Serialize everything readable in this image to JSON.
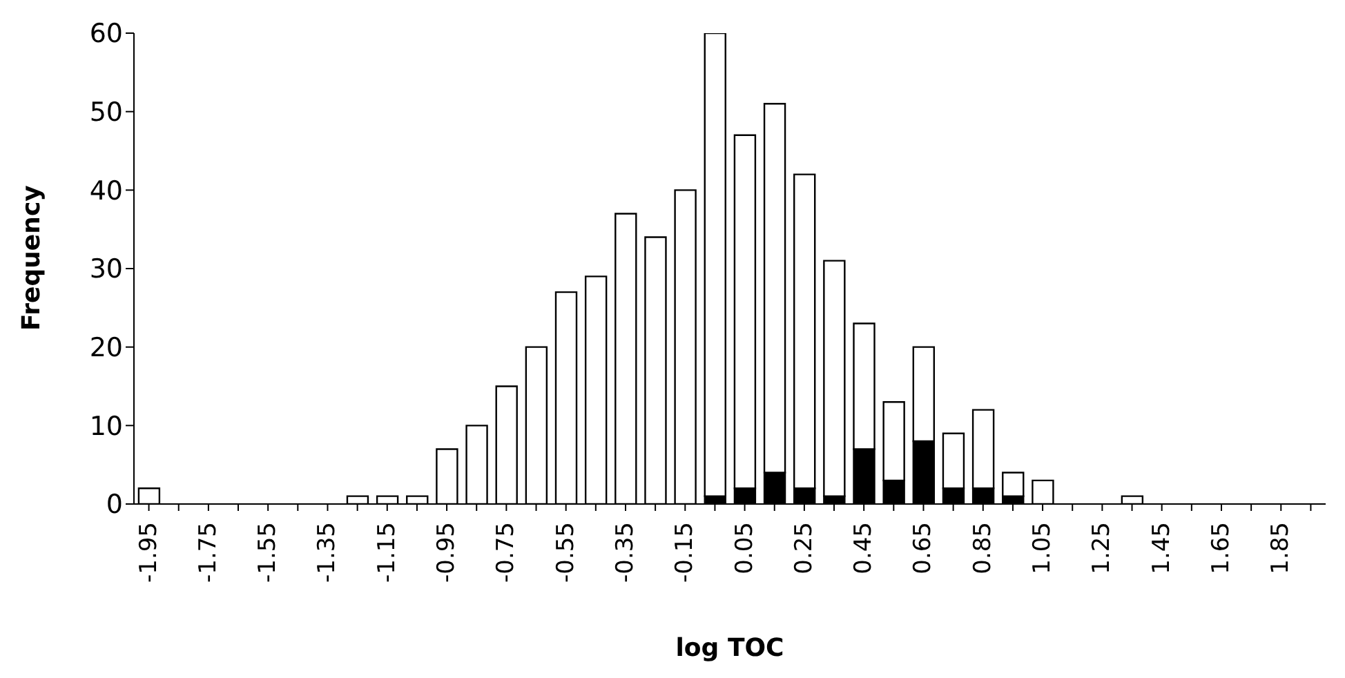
{
  "chart_data": {
    "type": "bar",
    "xlabel": "log TOC",
    "ylabel": "Frequency",
    "categories": [
      "-1.95",
      null,
      "-1.75",
      null,
      "-1.55",
      null,
      "-1.35",
      null,
      "-1.15",
      null,
      "-0.95",
      null,
      "-0.75",
      null,
      "-0.55",
      null,
      "-0.35",
      null,
      "-0.15",
      null,
      "0.05",
      null,
      "0.25",
      null,
      "0.45",
      null,
      "0.65",
      null,
      "0.85",
      null,
      "1.05",
      null,
      "1.25",
      null,
      "1.45",
      null,
      "1.65",
      null,
      "1.85",
      null
    ],
    "stacked": true,
    "series": [
      {
        "color": "#000000",
        "values": [
          0,
          0,
          0,
          0,
          0,
          0,
          0,
          0,
          0,
          0,
          0,
          0,
          0,
          0,
          0,
          0,
          0,
          0,
          0,
          1,
          2,
          4,
          2,
          1,
          7,
          3,
          8,
          2,
          2,
          1,
          0,
          0,
          0,
          0,
          0,
          0,
          0,
          0,
          0,
          0
        ]
      },
      {
        "color": "#ffffff",
        "values": [
          2,
          0,
          0,
          0,
          0,
          0,
          0,
          1,
          1,
          1,
          7,
          10,
          15,
          20,
          27,
          29,
          37,
          34,
          40,
          59,
          45,
          47,
          40,
          30,
          16,
          10,
          12,
          7,
          10,
          3,
          3,
          0,
          0,
          1,
          0,
          0,
          0,
          0,
          0,
          0
        ]
      }
    ],
    "ylim": [
      0,
      60
    ],
    "yticks": [
      0,
      10,
      20,
      30,
      40,
      50,
      60
    ],
    "grid": false,
    "legend": false
  }
}
